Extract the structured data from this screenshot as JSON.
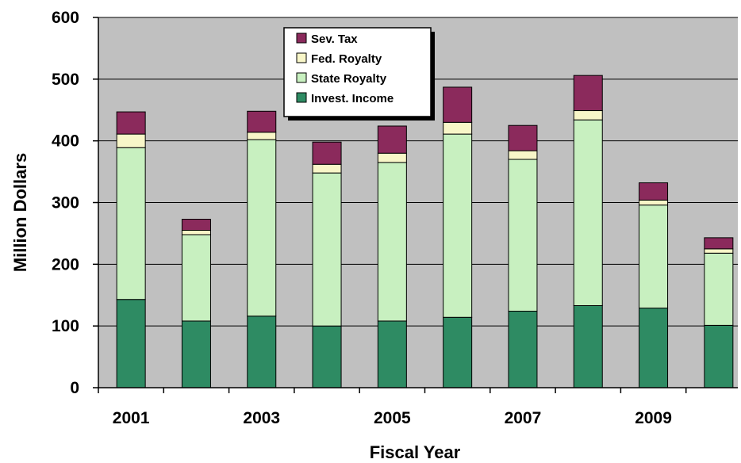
{
  "chart_data": {
    "type": "bar",
    "stacked": true,
    "xlabel": "Fiscal Year",
    "ylabel": "Million Dollars",
    "ylim": [
      0,
      600
    ],
    "yticks": [
      0,
      100,
      200,
      300,
      400,
      500,
      600
    ],
    "categories": [
      "2001",
      "2002",
      "2003",
      "2004",
      "2005",
      "2006",
      "2007",
      "2008",
      "2009",
      "2010"
    ],
    "xtick_labels": [
      "2001",
      "",
      "2003",
      "",
      "2005",
      "",
      "2007",
      "",
      "2009",
      ""
    ],
    "grid": true,
    "legend_position": "top-center",
    "series": [
      {
        "name": "Invest. Income",
        "color": "#2e8b63",
        "values": [
          143,
          108,
          116,
          100,
          108,
          114,
          124,
          133,
          129,
          101
        ]
      },
      {
        "name": "State Royalty",
        "color": "#c8f0c0",
        "values": [
          246,
          140,
          286,
          248,
          257,
          297,
          246,
          301,
          167,
          117
        ]
      },
      {
        "name": "Fed. Royalty",
        "color": "#f8f6c8",
        "values": [
          22,
          7,
          12,
          14,
          15,
          19,
          14,
          15,
          8,
          7
        ]
      },
      {
        "name": "Sev. Tax",
        "color": "#8b2a5c",
        "values": [
          36,
          18,
          34,
          36,
          44,
          57,
          41,
          57,
          28,
          18
        ]
      }
    ],
    "plot_background": "#c0c0c0"
  }
}
